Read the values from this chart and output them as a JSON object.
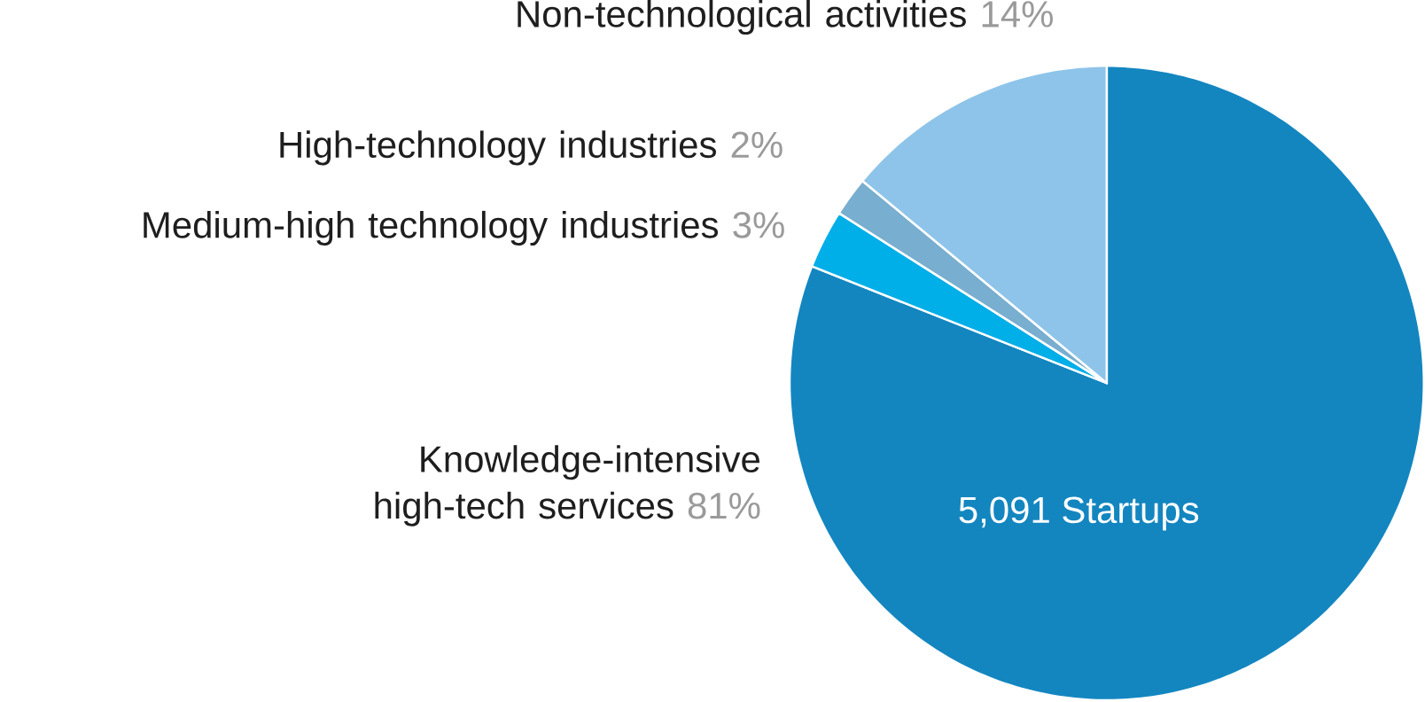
{
  "chart_data": {
    "type": "pie",
    "categories": [
      "Knowledge-intensive high-tech services",
      "Medium-high technology industries",
      "High-technology industries",
      "Non-technological activities"
    ],
    "values": [
      81,
      3,
      2,
      14
    ],
    "value_labels": [
      "81%",
      "3%",
      "2%",
      "14%"
    ],
    "colors": [
      "#1386c0",
      "#00aee8",
      "#78aecf",
      "#8ec4ea"
    ],
    "annotations": [
      "5,091 Startups"
    ]
  }
}
